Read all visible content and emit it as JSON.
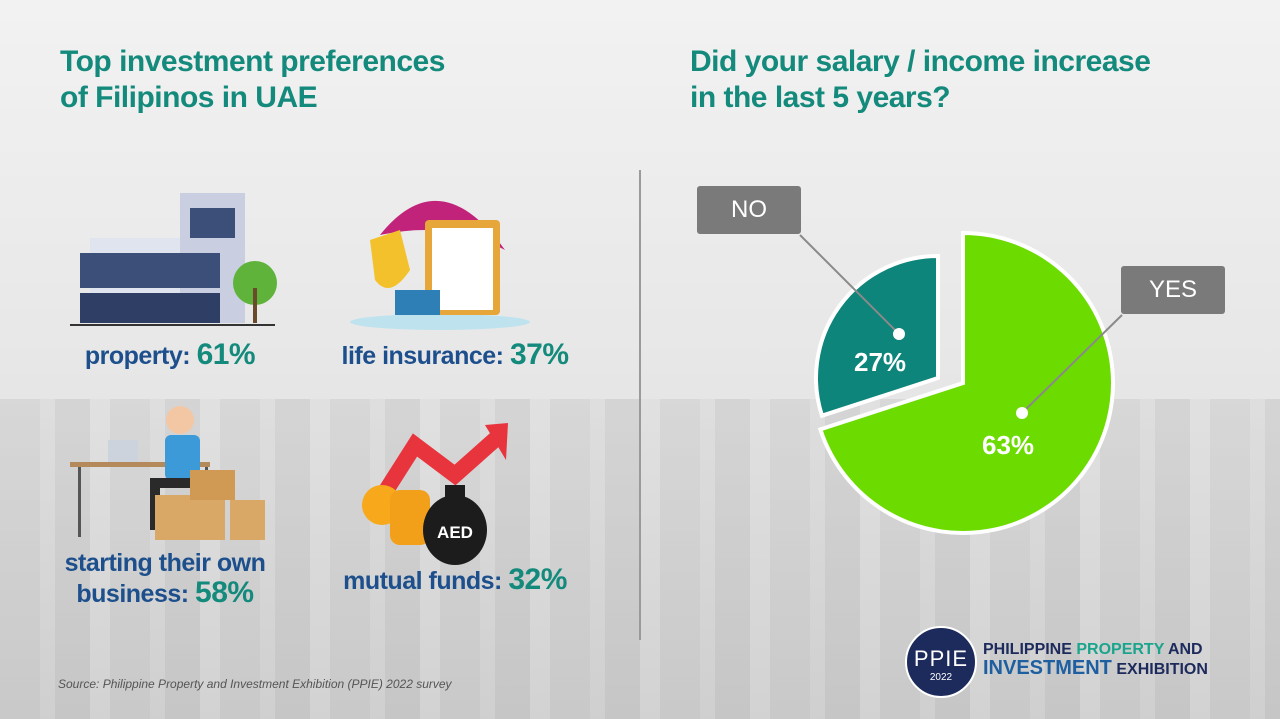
{
  "left": {
    "title_line1": "Top investment preferences",
    "title_line2": "of Filipinos in UAE",
    "items": [
      {
        "label": "property:",
        "value": "61%",
        "icon": "building-icon"
      },
      {
        "label": "life insurance:",
        "value": "37%",
        "icon": "insurance-umbrella-icon"
      },
      {
        "label_line1": "starting their own",
        "label_line2": "business:",
        "value": "58%",
        "icon": "business-person-boxes-icon"
      },
      {
        "label": "mutual funds:",
        "value": "32%",
        "icon": "money-bag-arrow-icon",
        "bag_text": "AED"
      }
    ],
    "source": "Source: Philippine Property and Investment Exhibition (PPIE) 2022 survey"
  },
  "chart_data": {
    "type": "pie",
    "title": "Did your salary / income increase in the last 5 years?",
    "title_line1": "Did your salary / income increase",
    "title_line2": "in the last 5 years?",
    "slices": [
      {
        "label": "NO",
        "value": 27,
        "value_label": "27%",
        "color": "#0e857a"
      },
      {
        "label": "YES",
        "value": 63,
        "value_label": "63%",
        "color": "#6cdb00"
      }
    ]
  },
  "logo": {
    "badge": "PPIE",
    "year": "2022",
    "line1_a": "PHILIPPINE ",
    "line1_b": "PROPERTY",
    "line1_c": " AND",
    "line2_a": "INVESTMENT",
    "line2_b": " EXHIBITION",
    "colors": {
      "navy": "#1d2a5c",
      "teal": "#1aa58c",
      "blue": "#1d5fa0"
    }
  }
}
